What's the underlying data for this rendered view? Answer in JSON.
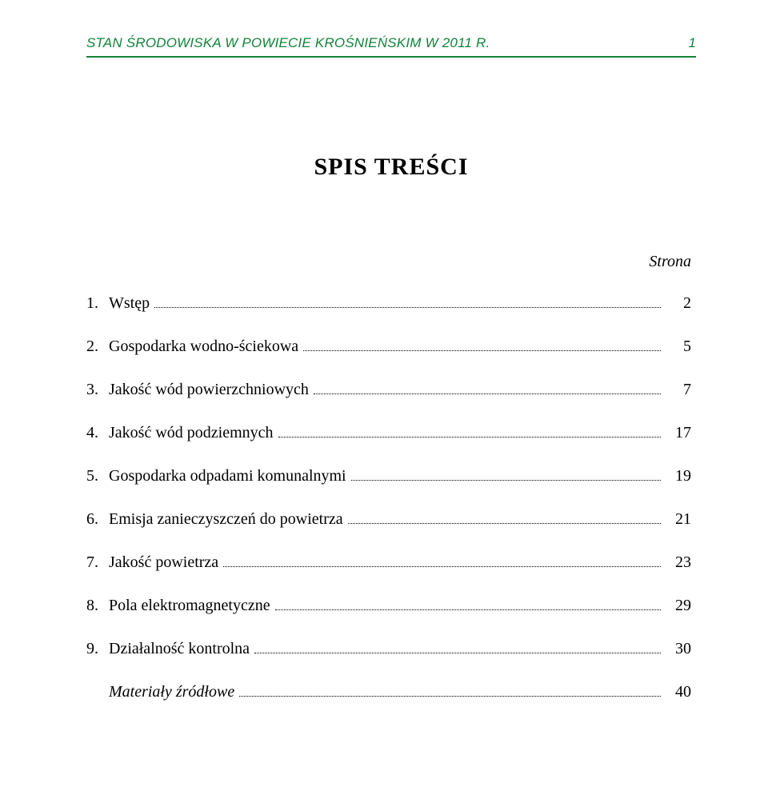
{
  "header": {
    "title": "STAN ŚRODOWISKA W POWIECIE KROŚNIEŃSKIM W 2011 R.",
    "page_number": "1",
    "rule_color": "#12833a",
    "text_color": "#12833a"
  },
  "title": "SPIS  TREŚCI",
  "page_label": "Strona",
  "toc": [
    {
      "num": "1.",
      "label": "Wstęp",
      "page": "2"
    },
    {
      "num": "2.",
      "label": "Gospodarka wodno-ściekowa",
      "page": "5"
    },
    {
      "num": "3.",
      "label": "Jakość wód powierzchniowych",
      "page": "7"
    },
    {
      "num": "4.",
      "label": "Jakość wód podziemnych",
      "page": "17"
    },
    {
      "num": "5.",
      "label": "Gospodarka odpadami komunalnymi",
      "page": "19"
    },
    {
      "num": "6.",
      "label": "Emisja zanieczyszczeń do powietrza",
      "page": "21"
    },
    {
      "num": "7.",
      "label": "Jakość powietrza",
      "page": "23"
    },
    {
      "num": "8.",
      "label": "Pola elektromagnetyczne",
      "page": "29"
    },
    {
      "num": "9.",
      "label": "Działalność kontrolna",
      "page": "30"
    }
  ],
  "materials": {
    "label": "Materiały źródłowe",
    "page": "40"
  },
  "styling": {
    "page_bg": "#ffffff",
    "body_font": "Times New Roman",
    "header_font": "Arial",
    "title_fontsize_pt": 22,
    "body_fontsize_pt": 15,
    "header_fontsize_pt": 13
  }
}
